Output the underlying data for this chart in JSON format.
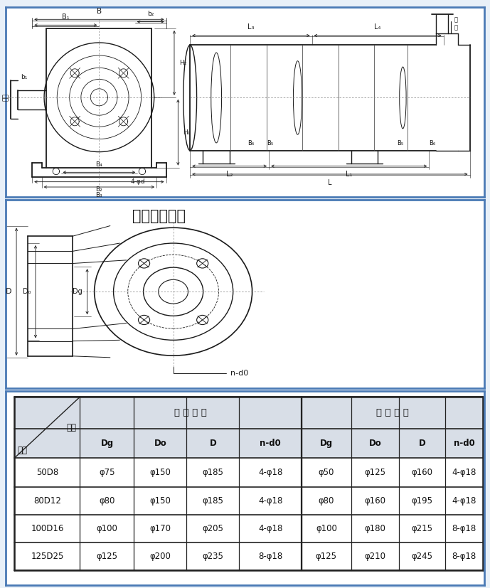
{
  "bg_color": "#e8f0f8",
  "border_color": "#4a7ab5",
  "section2_title": "吸入吐出法兰",
  "table_header2": "吸 入 法 兰",
  "table_header3": "吐 出 法 兰",
  "table_rows": [
    [
      "50D8",
      "φ75",
      "φ150",
      "φ185",
      "4-φ18",
      "φ50",
      "φ125",
      "φ160",
      "4-φ18"
    ],
    [
      "80D12",
      "φ80",
      "φ150",
      "φ185",
      "4-φ18",
      "φ80",
      "φ160",
      "φ195",
      "4-φ18"
    ],
    [
      "100D16",
      "φ100",
      "φ170",
      "φ205",
      "4-φ18",
      "φ100",
      "φ180",
      "φ215",
      "8-φ18"
    ],
    [
      "125D25",
      "φ125",
      "φ200",
      "φ235",
      "8-φ18",
      "φ125",
      "φ210",
      "φ245",
      "8-φ18"
    ]
  ],
  "line_color": "#1a1a1a",
  "table_bg": "#c8d0de",
  "table_line_color": "#222222"
}
